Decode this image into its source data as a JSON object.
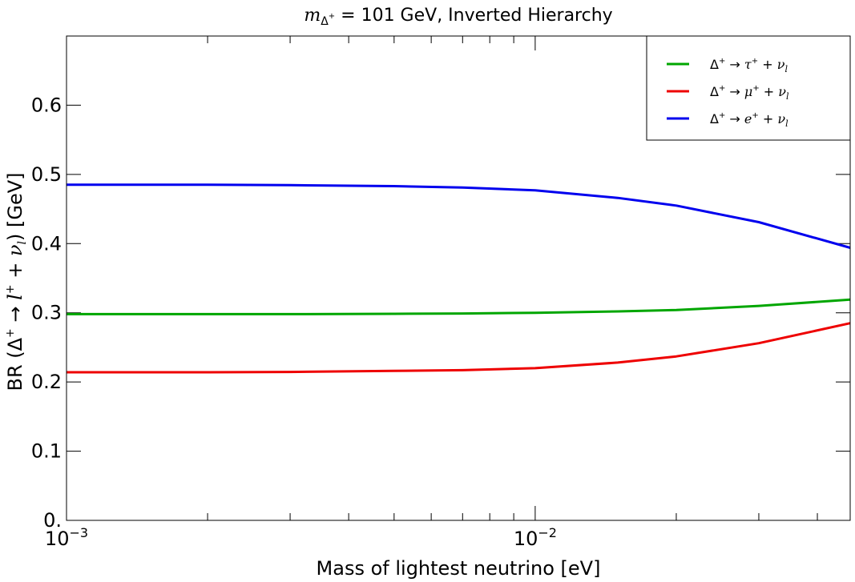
{
  "chart_data": {
    "type": "line",
    "title": {
      "prefix": "m",
      "sub": "Δ",
      "subsup": "+",
      "rest": " = 101 GeV, Inverted Hierarchy"
    },
    "xlabel": "Mass of lightest neutrino [eV]",
    "ylabel": {
      "part1": "BR (Δ",
      "sup1": "+",
      "part2": " → ",
      "l": "l",
      "sup2": "+",
      "part3": " + ",
      "nu": "ν",
      "sub": "l",
      "part4": ") [GeV]"
    },
    "x_scale": "log",
    "xlim": [
      0.001,
      0.047
    ],
    "ylim": [
      0,
      0.7
    ],
    "x_ticks": [
      {
        "value": 0.001,
        "base": "10",
        "exp": "−3"
      },
      {
        "value": 0.01,
        "base": "10",
        "exp": "−2"
      }
    ],
    "y_ticks": [
      {
        "value": 0,
        "label": "0."
      },
      {
        "value": 0.1,
        "label": "0.1"
      },
      {
        "value": 0.2,
        "label": "0.2"
      },
      {
        "value": 0.3,
        "label": "0.3"
      },
      {
        "value": 0.4,
        "label": "0.4"
      },
      {
        "value": 0.5,
        "label": "0.5"
      },
      {
        "value": 0.6,
        "label": "0.6"
      }
    ],
    "legend_position": "top-right",
    "series": [
      {
        "name": "tau",
        "legend": {
          "lhs": "Δ",
          "lhs_sup": "+",
          "arrow": " → ",
          "lep": "τ",
          "lep_sup": "+",
          "plus": " + ",
          "nu": "ν",
          "nu_sub": "l"
        },
        "color": "#00a600",
        "x": [
          0.001,
          0.002,
          0.003,
          0.005,
          0.007,
          0.01,
          0.015,
          0.02,
          0.03,
          0.047
        ],
        "values": [
          0.298,
          0.298,
          0.298,
          0.2985,
          0.299,
          0.3,
          0.302,
          0.304,
          0.31,
          0.319
        ]
      },
      {
        "name": "mu",
        "legend": {
          "lhs": "Δ",
          "lhs_sup": "+",
          "arrow": " → ",
          "lep": "μ",
          "lep_sup": "+",
          "plus": " + ",
          "nu": "ν",
          "nu_sub": "l"
        },
        "color": "#ee0000",
        "x": [
          0.001,
          0.002,
          0.003,
          0.005,
          0.007,
          0.01,
          0.015,
          0.02,
          0.03,
          0.047
        ],
        "values": [
          0.214,
          0.214,
          0.2145,
          0.216,
          0.217,
          0.22,
          0.228,
          0.237,
          0.256,
          0.285
        ]
      },
      {
        "name": "e",
        "legend": {
          "lhs": "Δ",
          "lhs_sup": "+",
          "arrow": " → ",
          "lep": "e",
          "lep_sup": "+",
          "plus": " + ",
          "nu": "ν",
          "nu_sub": "l"
        },
        "color": "#0000ee",
        "x": [
          0.001,
          0.002,
          0.003,
          0.005,
          0.007,
          0.01,
          0.015,
          0.02,
          0.03,
          0.047
        ],
        "values": [
          0.485,
          0.485,
          0.4845,
          0.483,
          0.481,
          0.477,
          0.466,
          0.455,
          0.431,
          0.394
        ]
      }
    ]
  }
}
